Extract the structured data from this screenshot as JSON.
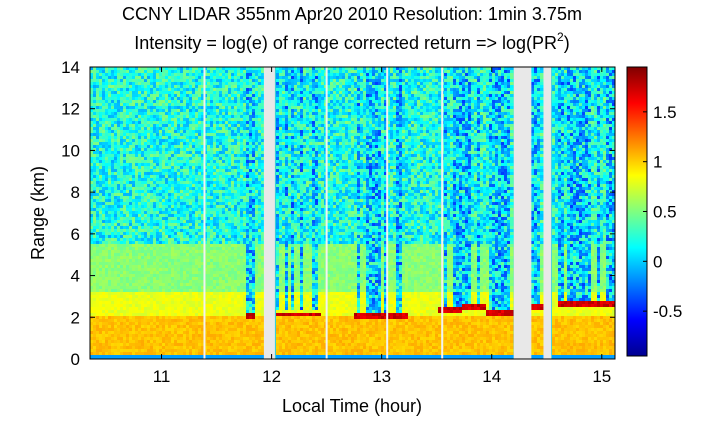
{
  "chart_data": {
    "type": "heatmap",
    "title_line1": "CCNY LIDAR 355nm Apr20 2010 Resolution: 1min 3.75m",
    "title_line2_prefix": "Intensity = log(e) of range corrected return => log(PR",
    "title_line2_sup": "2",
    "title_line2_suffix": ")",
    "xlabel": "Local Time (hour)",
    "ylabel": "Range (km)",
    "xlim": [
      10.35,
      15.12
    ],
    "ylim": [
      0,
      14
    ],
    "xticks": [
      "11",
      "12",
      "13",
      "14",
      "15"
    ],
    "xtick_values": [
      11,
      12,
      13,
      14,
      15
    ],
    "yticks": [
      "0",
      "2",
      "4",
      "6",
      "8",
      "10",
      "12",
      "14"
    ],
    "ytick_values": [
      0,
      2,
      4,
      6,
      8,
      10,
      12,
      14
    ],
    "colorbar": {
      "clim": [
        -0.95,
        1.95
      ],
      "ticks": [
        "-0.5",
        "0",
        "0.5",
        "1",
        "1.5"
      ],
      "tick_values": [
        -0.5,
        0,
        0.5,
        1,
        1.5
      ],
      "colormap": "jet"
    },
    "data_gaps_hours": [
      [
        11.93,
        12.03
      ],
      [
        14.2,
        14.36
      ],
      [
        14.47,
        14.54
      ]
    ],
    "thin_gaps_hours": [
      11.39,
      12.5,
      13.05,
      13.55
    ],
    "cloud_layer_km": [
      {
        "from": 11.78,
        "to": 11.85,
        "km": 2.05
      },
      {
        "from": 12.05,
        "to": 12.45,
        "km": 2.15
      },
      {
        "from": 12.75,
        "to": 13.25,
        "km": 2.1
      },
      {
        "from": 13.5,
        "to": 13.72,
        "km": 2.35
      },
      {
        "from": 13.72,
        "to": 13.95,
        "km": 2.45
      },
      {
        "from": 13.95,
        "to": 14.2,
        "km": 2.25
      },
      {
        "from": 14.36,
        "to": 14.47,
        "km": 2.5
      },
      {
        "from": 14.6,
        "to": 15.12,
        "km": 2.6
      }
    ]
  }
}
